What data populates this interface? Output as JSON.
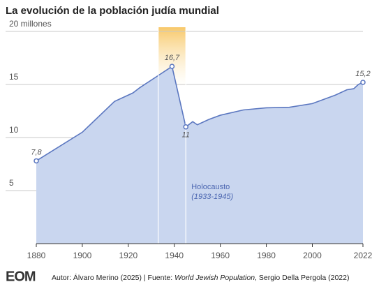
{
  "chart_data": {
    "type": "area",
    "title": "La evolución de la población judía mundial",
    "x": [
      1880,
      1900,
      1914,
      1922,
      1925,
      1932,
      1939,
      1945,
      1948,
      1950,
      1955,
      1960,
      1970,
      1980,
      1990,
      2000,
      2010,
      2015,
      2018,
      2020,
      2022
    ],
    "series": [
      {
        "name": "Población judía mundial",
        "color": "#5b77c0",
        "fill": "#c9d6ef",
        "values": [
          7.8,
          10.5,
          13.4,
          14.2,
          14.7,
          15.7,
          16.7,
          11,
          11.5,
          11.2,
          11.7,
          12.1,
          12.6,
          12.8,
          12.85,
          13.2,
          14.0,
          14.5,
          14.6,
          15.0,
          15.2
        ],
        "value_labels": [
          "7,8",
          null,
          null,
          null,
          null,
          null,
          "16,7",
          "11",
          null,
          null,
          null,
          null,
          null,
          null,
          null,
          null,
          null,
          null,
          null,
          null,
          "15,2"
        ]
      }
    ],
    "xlim": [
      1880,
      2022
    ],
    "xticks": [
      1880,
      1900,
      1920,
      1940,
      1960,
      1980,
      2000,
      2022
    ],
    "ylim": [
      0,
      20
    ],
    "yticks": [
      5,
      10,
      15,
      {
        "value": 20,
        "label": "20 millones"
      }
    ],
    "grid": true,
    "highlight": {
      "start": 1933,
      "end": 1945,
      "label": "Holocausto",
      "sublabel": "(1933-1945)"
    },
    "footer": {
      "logo": "EOM",
      "author": "Autor: Álvaro Merino (2025) | Fuente: ",
      "source_title": "World Jewish Population",
      "source_rest": ", Sergio Della Pergola (2022)"
    }
  }
}
